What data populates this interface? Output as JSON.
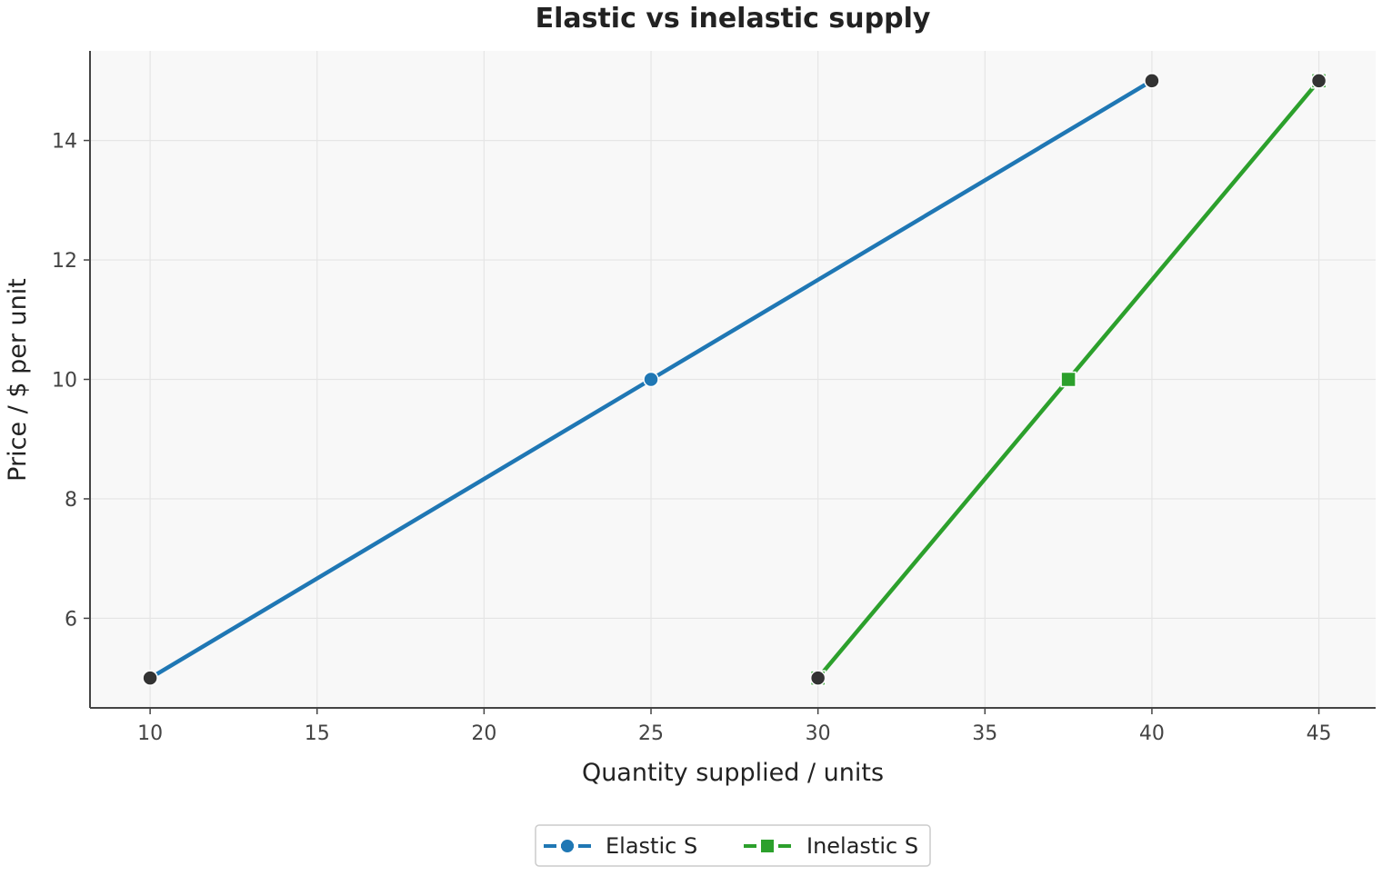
{
  "chart_data": {
    "type": "line",
    "title": "Elastic vs inelastic supply",
    "xlabel": "Quantity supplied / units",
    "ylabel": "Price / $ per unit",
    "xlim": [
      8.2,
      46.7
    ],
    "ylim": [
      4.5,
      15.5
    ],
    "xticks": [
      10,
      15,
      20,
      25,
      30,
      35,
      40,
      45
    ],
    "yticks": [
      6,
      8,
      10,
      12,
      14
    ],
    "grid": true,
    "legend": {
      "placement": "bottom-center",
      "entries": [
        "Elastic S",
        "Inelastic S"
      ]
    },
    "series": [
      {
        "name": "Elastic S",
        "color": "#1f77b4",
        "marker": "circle",
        "points": [
          [
            10,
            5
          ],
          [
            25,
            10
          ],
          [
            40,
            15
          ]
        ]
      },
      {
        "name": "Inelastic S",
        "color": "#2ca02c",
        "marker": "square",
        "points": [
          [
            30,
            5
          ],
          [
            37.5,
            10
          ],
          [
            45,
            15
          ]
        ]
      }
    ],
    "highlight_points": [
      [
        10,
        5
      ],
      [
        40,
        15
      ],
      [
        30,
        5
      ],
      [
        45,
        15
      ]
    ],
    "colors": {
      "plot_background": "#f8f8f8",
      "grid": "#e5e5e5",
      "axis": "#444444",
      "highlight": "#333333"
    }
  }
}
